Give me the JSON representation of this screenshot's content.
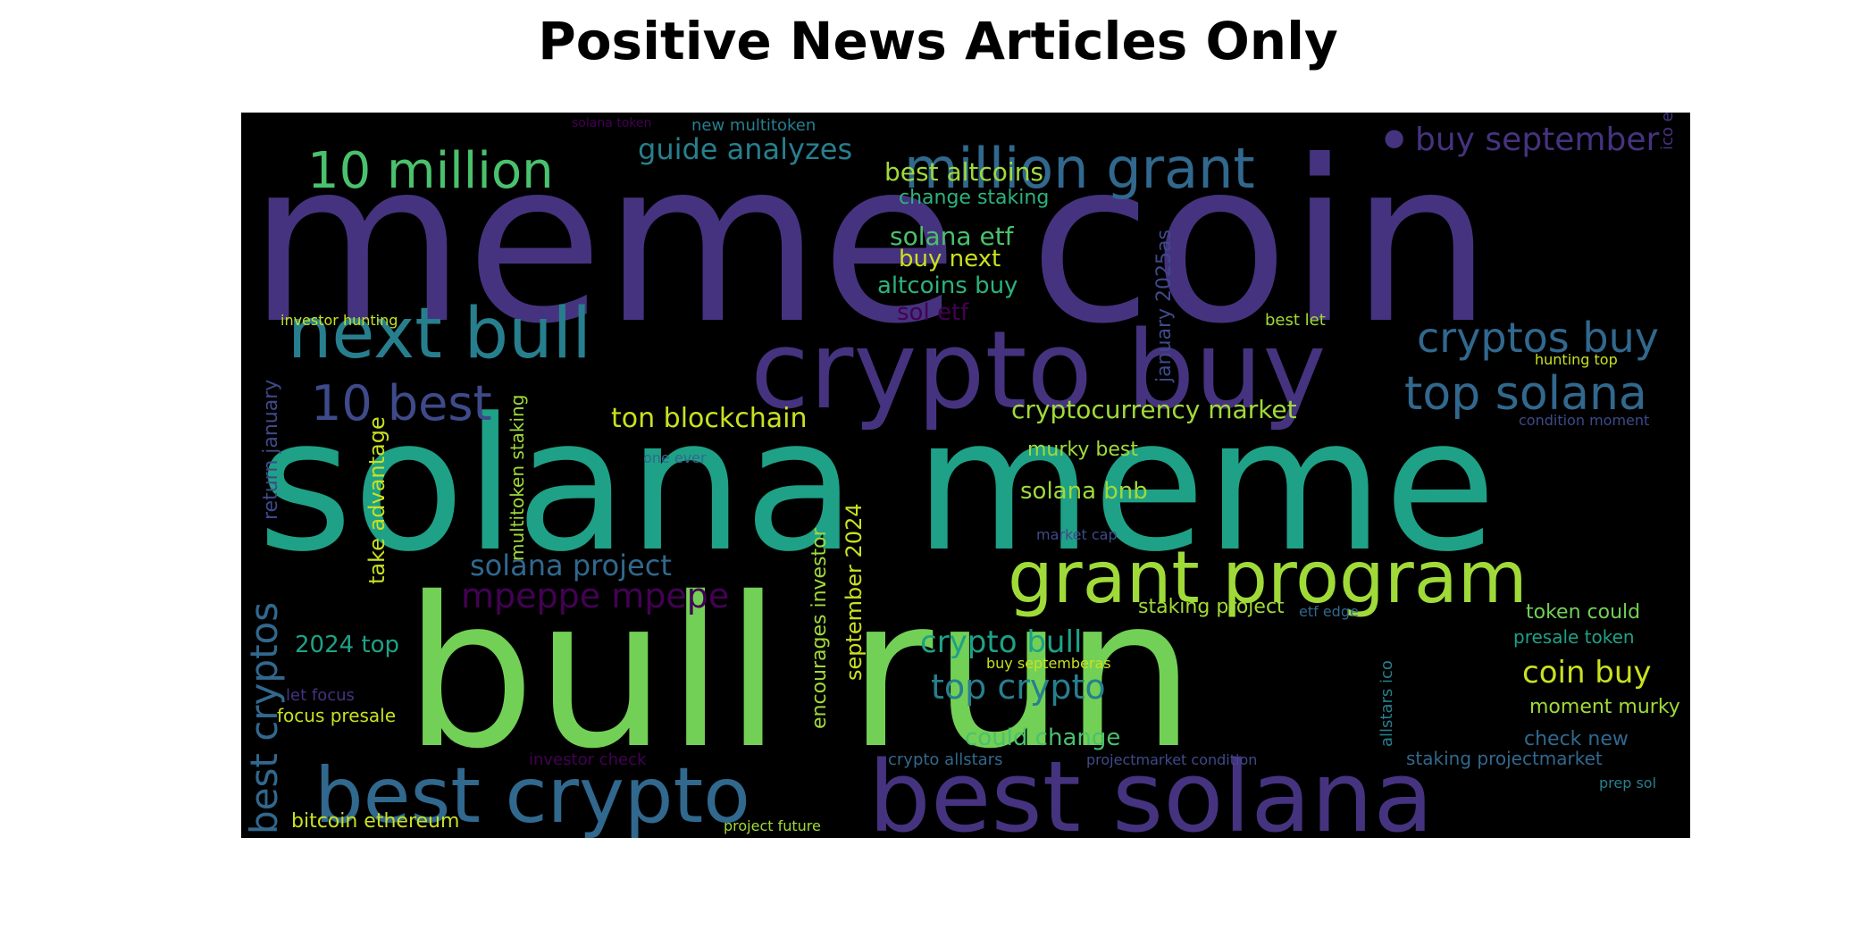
{
  "title": "Positive News Articles Only",
  "colors": {
    "background": "#000000",
    "palette": [
      "#440154",
      "#46337f",
      "#3f4a8a",
      "#31688e",
      "#277f8e",
      "#1fa187",
      "#2db27d",
      "#4ac16d",
      "#73d056",
      "#a0da39",
      "#c9e120",
      "#fde725"
    ]
  },
  "chart_data": {
    "type": "wordcloud",
    "words": [
      {
        "text": "meme coin",
        "color": "#46337f"
      },
      {
        "text": "solana meme",
        "color": "#1fa187"
      },
      {
        "text": "bull run",
        "color": "#73d056"
      },
      {
        "text": "crypto buy",
        "color": "#46337f"
      },
      {
        "text": "best solana",
        "color": "#46337f"
      },
      {
        "text": "best crypto",
        "color": "#31688e"
      },
      {
        "text": "grant program",
        "color": "#a0da39"
      },
      {
        "text": "next bull",
        "color": "#277f8e"
      },
      {
        "text": "million grant",
        "color": "#31688e"
      },
      {
        "text": "10 million",
        "color": "#4ac16d"
      },
      {
        "text": "top solana",
        "color": "#31688e"
      },
      {
        "text": "cryptos buy",
        "color": "#31688e"
      },
      {
        "text": "buy september",
        "color": "#46337f"
      },
      {
        "text": "10 best",
        "color": "#3f4a8a"
      },
      {
        "text": "best cryptos",
        "color": "#31688e"
      },
      {
        "text": "mpeppe mpepe",
        "color": "#440154"
      },
      {
        "text": "guide analyzes",
        "color": "#277f8e"
      },
      {
        "text": "top crypto",
        "color": "#277f8e"
      },
      {
        "text": "crypto bull",
        "color": "#1fa187"
      },
      {
        "text": "coin buy",
        "color": "#c9e120"
      },
      {
        "text": "solana project",
        "color": "#31688e"
      },
      {
        "text": "ton blockchain",
        "color": "#c9e120"
      },
      {
        "text": "cryptocurrency market",
        "color": "#a0da39"
      },
      {
        "text": "best altcoins",
        "color": "#a0da39"
      },
      {
        "text": "solana etf",
        "color": "#4ac16d"
      },
      {
        "text": "buy next",
        "color": "#c9e120"
      },
      {
        "text": "altcoins buy",
        "color": "#2db27d"
      },
      {
        "text": "sol etf",
        "color": "#440154"
      },
      {
        "text": "change staking",
        "color": "#2db27d"
      },
      {
        "text": "solana bnb",
        "color": "#a0da39"
      },
      {
        "text": "murky best",
        "color": "#a0da39"
      },
      {
        "text": "could change",
        "color": "#4ac16d"
      },
      {
        "text": "2024 top",
        "color": "#1fa187"
      },
      {
        "text": "september 2024",
        "color": "#c9e120"
      },
      {
        "text": "encourages investor",
        "color": "#a0da39"
      },
      {
        "text": "take advantage",
        "color": "#c9e120"
      },
      {
        "text": "multitoken staking",
        "color": "#a0da39"
      },
      {
        "text": "return january",
        "color": "#3f4a8a"
      },
      {
        "text": "january 2025as",
        "color": "#3f4a8a"
      },
      {
        "text": "staking project",
        "color": "#a0da39"
      },
      {
        "text": "token could",
        "color": "#73d056"
      },
      {
        "text": "presale token",
        "color": "#1fa187"
      },
      {
        "text": "moment murky",
        "color": "#a0da39"
      },
      {
        "text": "check new",
        "color": "#31688e"
      },
      {
        "text": "staking projectmarket",
        "color": "#31688e"
      },
      {
        "text": "bitcoin ethereum",
        "color": "#c9e120"
      },
      {
        "text": "focus presale",
        "color": "#c9e120"
      },
      {
        "text": "let focus",
        "color": "#46337f"
      },
      {
        "text": "investor check",
        "color": "#440154"
      },
      {
        "text": "crypto allstars",
        "color": "#31688e"
      },
      {
        "text": "projectmarket condition",
        "color": "#3f4a8a"
      },
      {
        "text": "project future",
        "color": "#a0da39"
      },
      {
        "text": "investor hunting",
        "color": "#c9e120"
      },
      {
        "text": "best let",
        "color": "#a0da39"
      },
      {
        "text": "hunting top",
        "color": "#c9e120"
      },
      {
        "text": "condition moment",
        "color": "#3f4a8a"
      },
      {
        "text": "one ever",
        "color": "#31688e"
      },
      {
        "text": "market cap",
        "color": "#3f4a8a"
      },
      {
        "text": "etf edge",
        "color": "#31688e"
      },
      {
        "text": "allstars ico",
        "color": "#277f8e"
      },
      {
        "text": "buy septemberas",
        "color": "#c9e120"
      },
      {
        "text": "prep sol",
        "color": "#277f8e"
      },
      {
        "text": "ico encourages",
        "color": "#46337f"
      },
      {
        "text": "solana token",
        "color": "#440154"
      },
      {
        "text": "new multitoken",
        "color": "#277f8e"
      },
      {
        "text": "•",
        "color": "#46337f"
      }
    ]
  }
}
